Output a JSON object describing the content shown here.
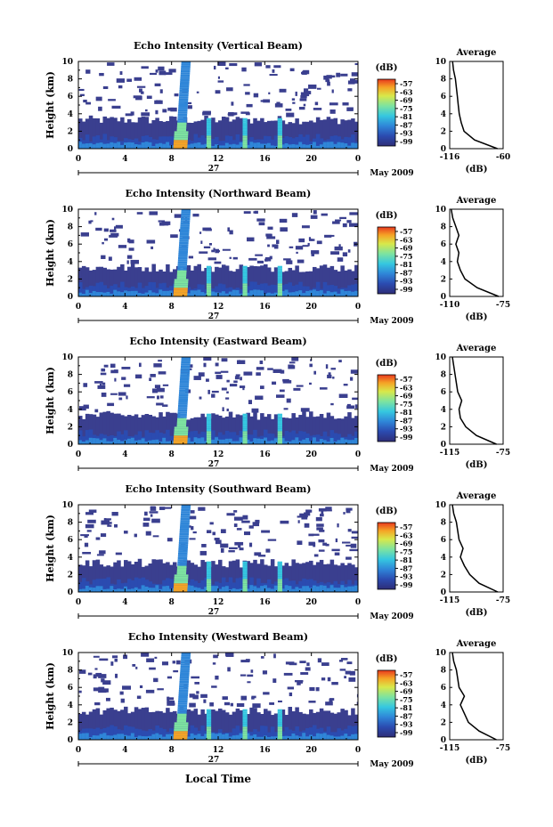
{
  "figure": {
    "xlabel": "Local Time",
    "date_label": "May 2009",
    "day_label": "27",
    "ylabel": "Height (km)",
    "avg_title": "Average",
    "avg_xlabel": "(dB)",
    "cbar_unit": "(dB)"
  },
  "colors": {
    "background": "#ffffff",
    "noise_floor": "#3a3f8f",
    "scale": [
      "#2e2d78",
      "#2b4bb0",
      "#2f86d8",
      "#35c7e0",
      "#7de3a0",
      "#d8e84a",
      "#f5a325",
      "#e8381e"
    ]
  },
  "chart_data": [
    {
      "type": "heatmap",
      "title": "Echo Intensity (Vertical Beam)",
      "x_ticks": [
        "0",
        "4",
        "8",
        "12",
        "16",
        "20",
        "0"
      ],
      "xlim": [
        0,
        24
      ],
      "y_ticks": [
        "0",
        "2",
        "4",
        "6",
        "8",
        "10"
      ],
      "ylim": [
        0,
        10
      ],
      "colorbar_ticks": [
        "-57",
        "-63",
        "-69",
        "-75",
        "-81",
        "-87",
        "-93",
        "-99"
      ],
      "average": {
        "x_ticks": [
          "-116",
          "-60"
        ],
        "xlim": [
          -116,
          -60
        ],
        "y": [
          0,
          1,
          2,
          3,
          4,
          5,
          6,
          7,
          8,
          9,
          10
        ],
        "x": [
          -66,
          -90,
          -101,
          -104,
          -106,
          -107,
          -108,
          -109,
          -110,
          -112,
          -113
        ]
      }
    },
    {
      "type": "heatmap",
      "title": "Echo Intensity (Northward Beam)",
      "x_ticks": [
        "0",
        "4",
        "8",
        "12",
        "16",
        "20",
        "0"
      ],
      "xlim": [
        0,
        24
      ],
      "y_ticks": [
        "0",
        "2",
        "4",
        "6",
        "8",
        "10"
      ],
      "ylim": [
        0,
        10
      ],
      "colorbar_ticks": [
        "-57",
        "-63",
        "-69",
        "-75",
        "-81",
        "-87",
        "-93",
        "-99"
      ],
      "average": {
        "x_ticks": [
          "-110",
          "-75"
        ],
        "xlim": [
          -110,
          -75
        ],
        "y": [
          0,
          1,
          2,
          3,
          4,
          5,
          6,
          7,
          8,
          9,
          10
        ],
        "x": [
          -78,
          -92,
          -100,
          -103,
          -105,
          -104,
          -106,
          -104,
          -106,
          -108,
          -109
        ]
      }
    },
    {
      "type": "heatmap",
      "title": "Echo Intensity (Eastward Beam)",
      "x_ticks": [
        "0",
        "4",
        "8",
        "12",
        "16",
        "20",
        "0"
      ],
      "xlim": [
        0,
        24
      ],
      "y_ticks": [
        "0",
        "2",
        "4",
        "6",
        "8",
        "10"
      ],
      "ylim": [
        0,
        10
      ],
      "colorbar_ticks": [
        "-57",
        "-63",
        "-69",
        "-75",
        "-81",
        "-87",
        "-93",
        "-99"
      ],
      "average": {
        "x_ticks": [
          "-115",
          "-75"
        ],
        "xlim": [
          -115,
          -75
        ],
        "y": [
          0,
          1,
          2,
          3,
          4,
          5,
          6,
          7,
          8,
          9,
          10
        ],
        "x": [
          -80,
          -95,
          -103,
          -107,
          -108,
          -106,
          -109,
          -110,
          -111,
          -112,
          -113
        ]
      }
    },
    {
      "type": "heatmap",
      "title": "Echo Intensity (Southward Beam)",
      "x_ticks": [
        "0",
        "4",
        "8",
        "12",
        "16",
        "20",
        "0"
      ],
      "xlim": [
        0,
        24
      ],
      "y_ticks": [
        "0",
        "2",
        "4",
        "6",
        "8",
        "10"
      ],
      "ylim": [
        0,
        10
      ],
      "colorbar_ticks": [
        "-57",
        "-63",
        "-69",
        "-75",
        "-81",
        "-87",
        "-93",
        "-99"
      ],
      "average": {
        "x_ticks": [
          "-115",
          "-75"
        ],
        "xlim": [
          -115,
          -75
        ],
        "y": [
          0,
          1,
          2,
          3,
          4,
          5,
          6,
          7,
          8,
          9,
          10
        ],
        "x": [
          -79,
          -93,
          -100,
          -104,
          -107,
          -105,
          -108,
          -109,
          -110,
          -112,
          -113
        ]
      }
    },
    {
      "type": "heatmap",
      "title": "Echo Intensity (Westward Beam)",
      "x_ticks": [
        "0",
        "4",
        "8",
        "12",
        "16",
        "20",
        "0"
      ],
      "xlim": [
        0,
        24
      ],
      "y_ticks": [
        "0",
        "2",
        "4",
        "6",
        "8",
        "10"
      ],
      "ylim": [
        0,
        10
      ],
      "colorbar_ticks": [
        "-57",
        "-63",
        "-69",
        "-75",
        "-81",
        "-87",
        "-93",
        "-99"
      ],
      "average": {
        "x_ticks": [
          "-115",
          "-75"
        ],
        "xlim": [
          -115,
          -75
        ],
        "y": [
          0,
          1,
          2,
          3,
          4,
          5,
          6,
          7,
          8,
          9,
          10
        ],
        "x": [
          -80,
          -93,
          -101,
          -104,
          -107,
          -104,
          -108,
          -109,
          -110,
          -112,
          -113
        ]
      }
    }
  ]
}
